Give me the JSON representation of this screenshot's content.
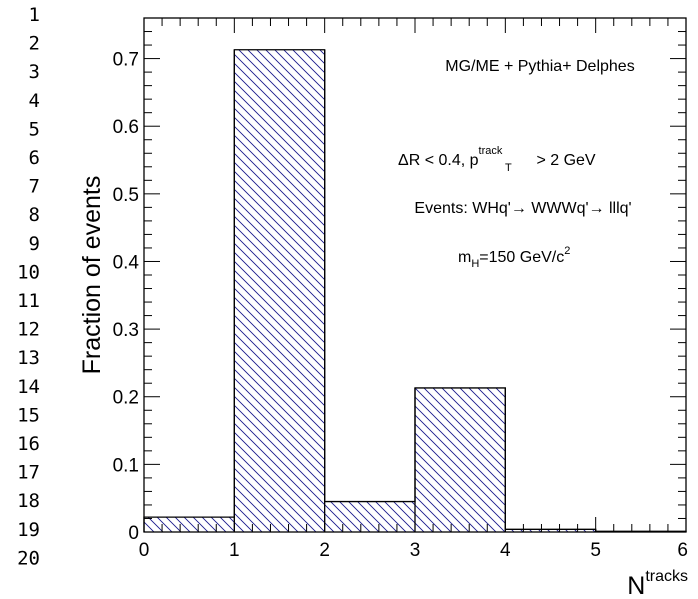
{
  "line_numbers": [
    "1",
    "2",
    "3",
    "4",
    "5",
    "6",
    "7",
    "8",
    "9",
    "10",
    "11",
    "12",
    "13",
    "14",
    "15",
    "16",
    "17",
    "18",
    "19",
    "20"
  ],
  "chart_data": {
    "type": "bar",
    "histogram": true,
    "bin_edges": [
      0,
      1,
      2,
      3,
      4,
      5,
      6
    ],
    "values": [
      0.022,
      0.713,
      0.045,
      0.213,
      0.004,
      0.001
    ],
    "xlim": [
      0,
      6
    ],
    "ylim": [
      0,
      0.76
    ],
    "xticks": [
      0,
      1,
      2,
      3,
      4,
      5,
      6
    ],
    "xtick_labels": [
      "0",
      "1",
      "2",
      "3",
      "4",
      "5",
      "6"
    ],
    "yticks": [
      0,
      0.1,
      0.2,
      0.3,
      0.4,
      0.5,
      0.6,
      0.7
    ],
    "ytick_labels": [
      "0",
      "0.1",
      "0.2",
      "0.3",
      "0.4",
      "0.5",
      "0.6",
      "0.7"
    ],
    "ylabel": "Fraction of events",
    "xlabel": {
      "base": "N",
      "sup": "tracks"
    },
    "fill": "hatched",
    "hatch_color": "#1a1a8c",
    "grid": false,
    "annotations": {
      "generator": "MG/ME + Pythia+ Delphes",
      "cut": {
        "prefix": "ΔR < 0.4, p",
        "sup": "track",
        "sub": "T",
        "suffix": " > 2 GeV"
      },
      "process": "Events: WHq'→ WWWq'→ lllq'",
      "mass": {
        "prefix": "m",
        "sub": "H",
        "mid": "=150 GeV/c",
        "sup": "2"
      }
    }
  }
}
